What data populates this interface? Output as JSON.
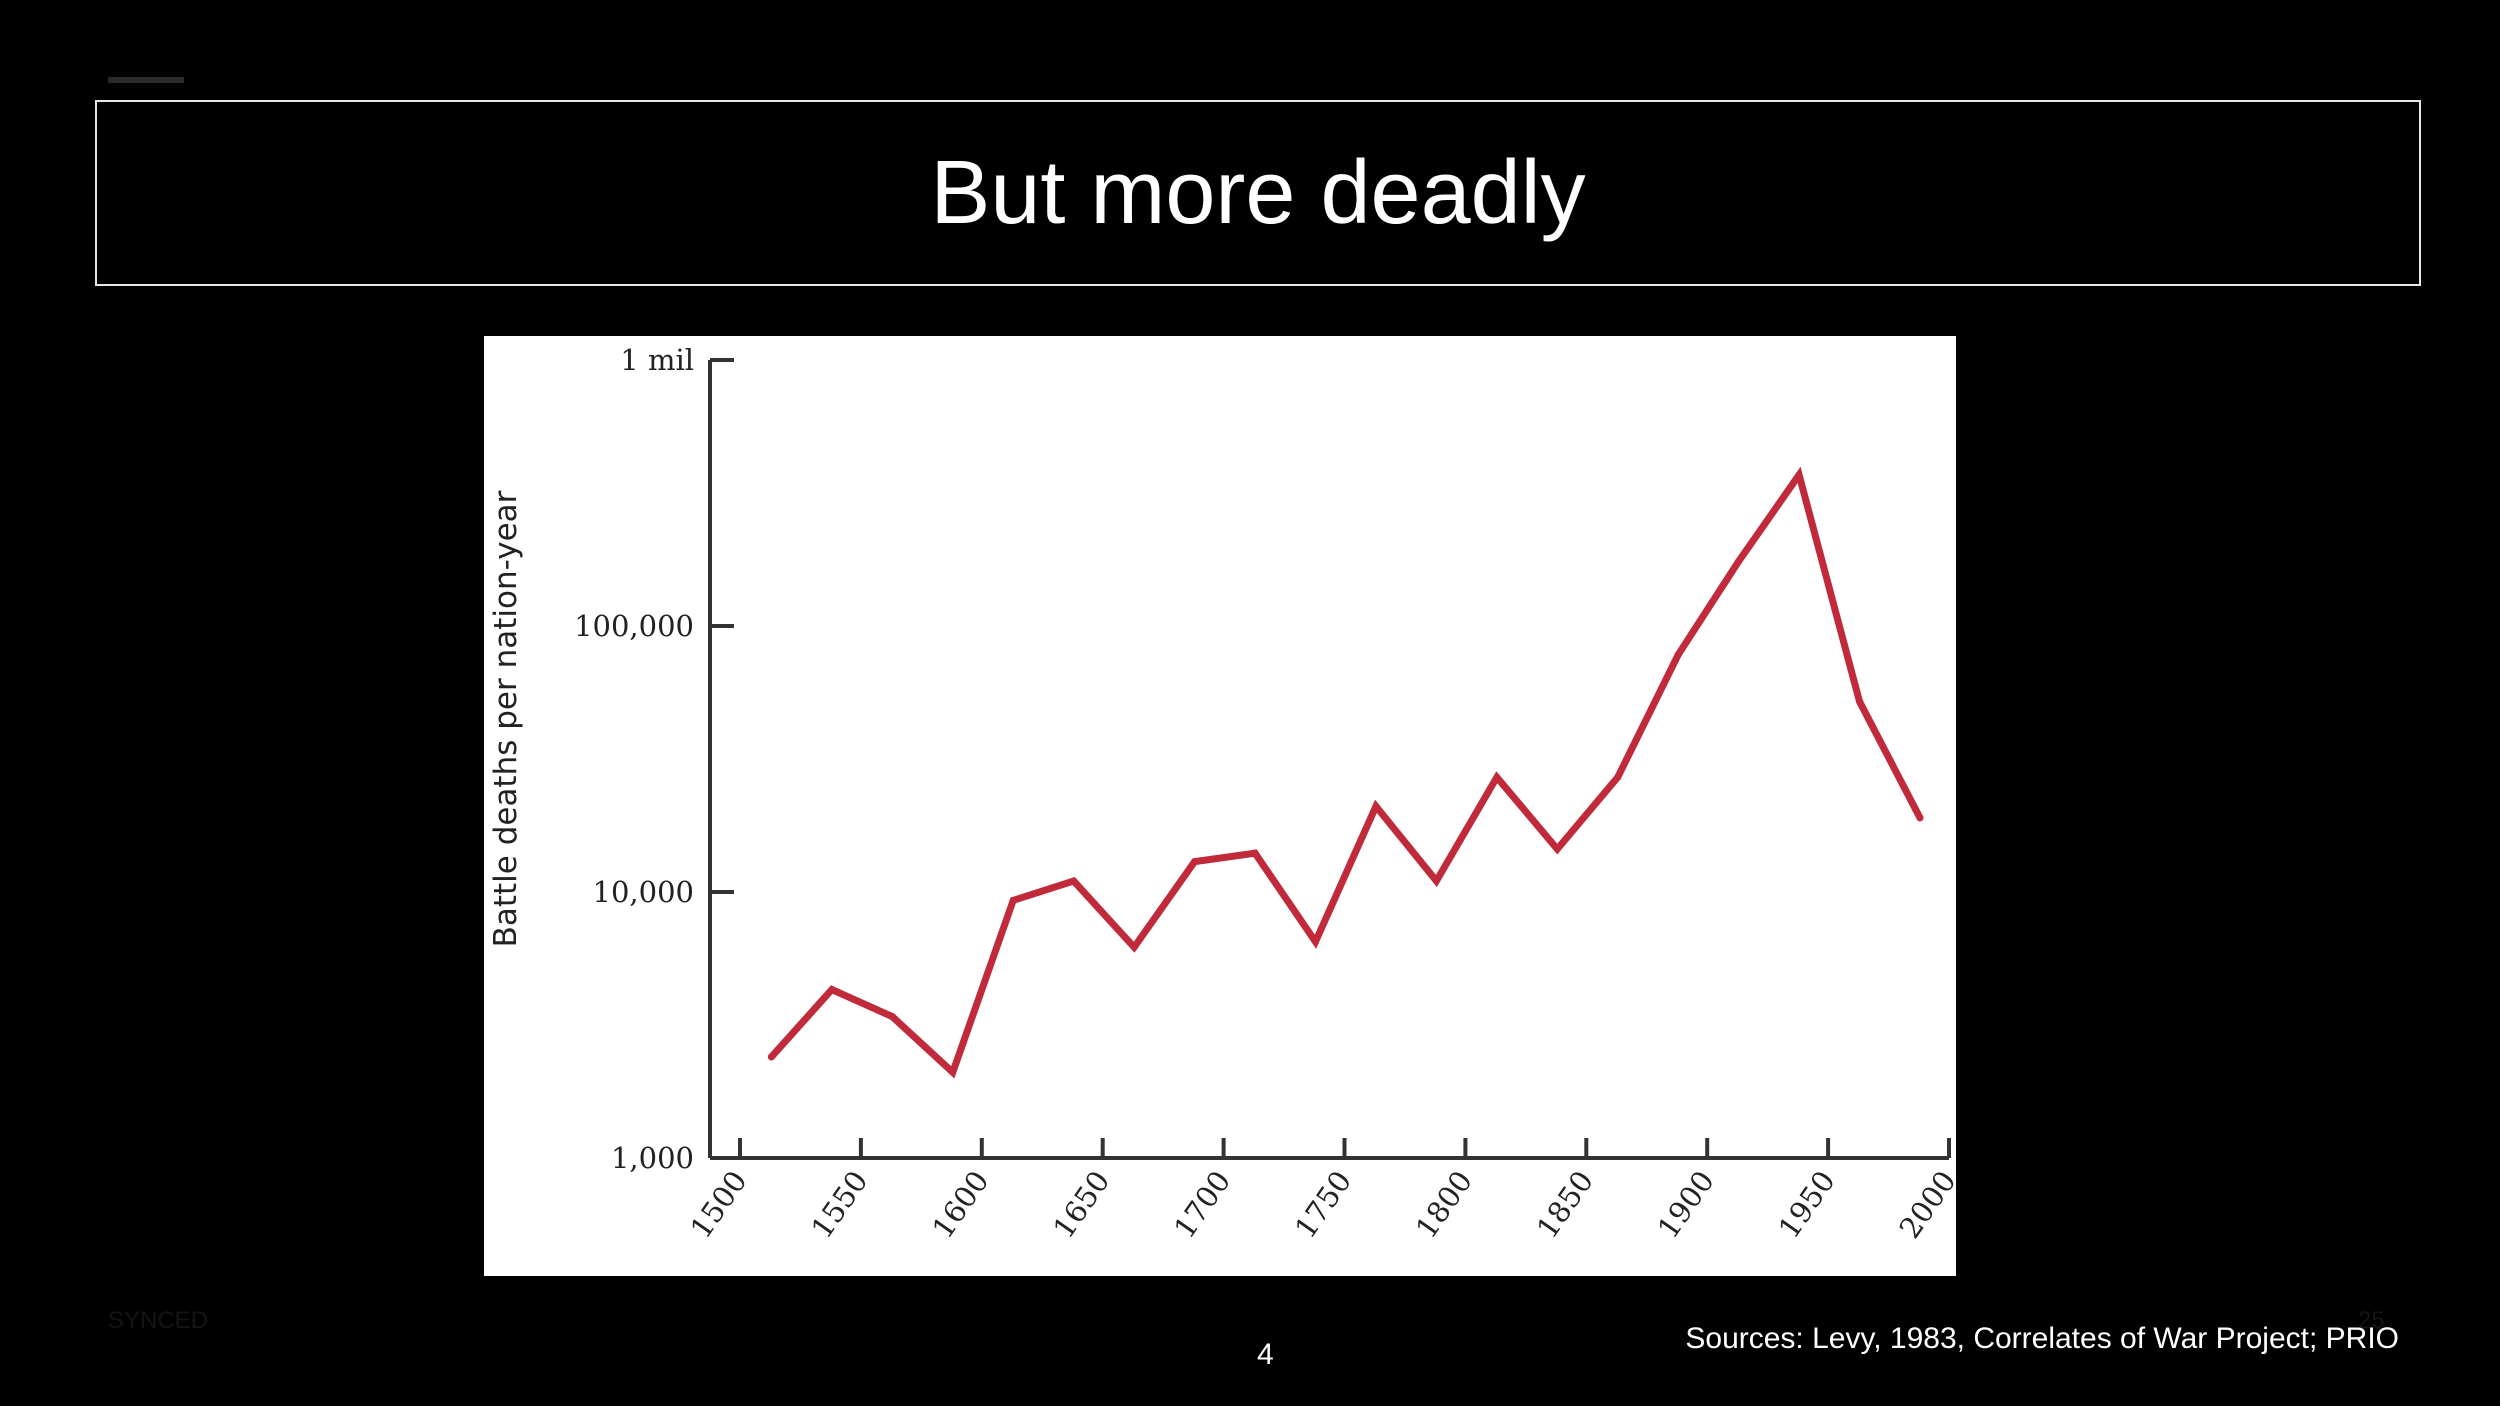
{
  "slide": {
    "title": "But more deadly",
    "footer_left": "SYNCED",
    "footer_right": "25",
    "page_number": "4",
    "sources": "Sources: Levy, 1983, Correlates of War Project; PRIO"
  },
  "colors": {
    "background": "#000000",
    "chart_background": "#ffffff",
    "line": "#c02a3a",
    "axis": "#333333"
  },
  "chart_data": {
    "type": "line",
    "title": "",
    "xlabel": "",
    "ylabel": "Battle deaths per nation-year",
    "yscale": "log",
    "xlim": [
      1500,
      2000
    ],
    "ylim": [
      1000,
      1000000
    ],
    "x_ticks": [
      1500,
      1550,
      1600,
      1650,
      1700,
      1750,
      1800,
      1850,
      1900,
      1950,
      2000
    ],
    "x_tick_labels": [
      "1500",
      "1550",
      "1600",
      "1650",
      "1700",
      "1750",
      "1800",
      "1850",
      "1900",
      "1950",
      "2000"
    ],
    "y_ticks": [
      1000,
      10000,
      100000,
      1000000
    ],
    "y_tick_labels": [
      "1,000",
      "10,000",
      "100,000",
      "1 mil"
    ],
    "series": [
      {
        "name": "Battle deaths",
        "x": [
          1513,
          1538,
          1563,
          1588,
          1613,
          1638,
          1663,
          1688,
          1713,
          1738,
          1763,
          1788,
          1813,
          1838,
          1863,
          1888,
          1913,
          1938,
          1963,
          1988
        ],
        "values": [
          2400,
          4300,
          3400,
          2100,
          9300,
          11000,
          6200,
          13000,
          14000,
          6500,
          21000,
          11000,
          27000,
          14500,
          27000,
          78000,
          175000,
          370000,
          52000,
          19000
        ]
      }
    ]
  }
}
